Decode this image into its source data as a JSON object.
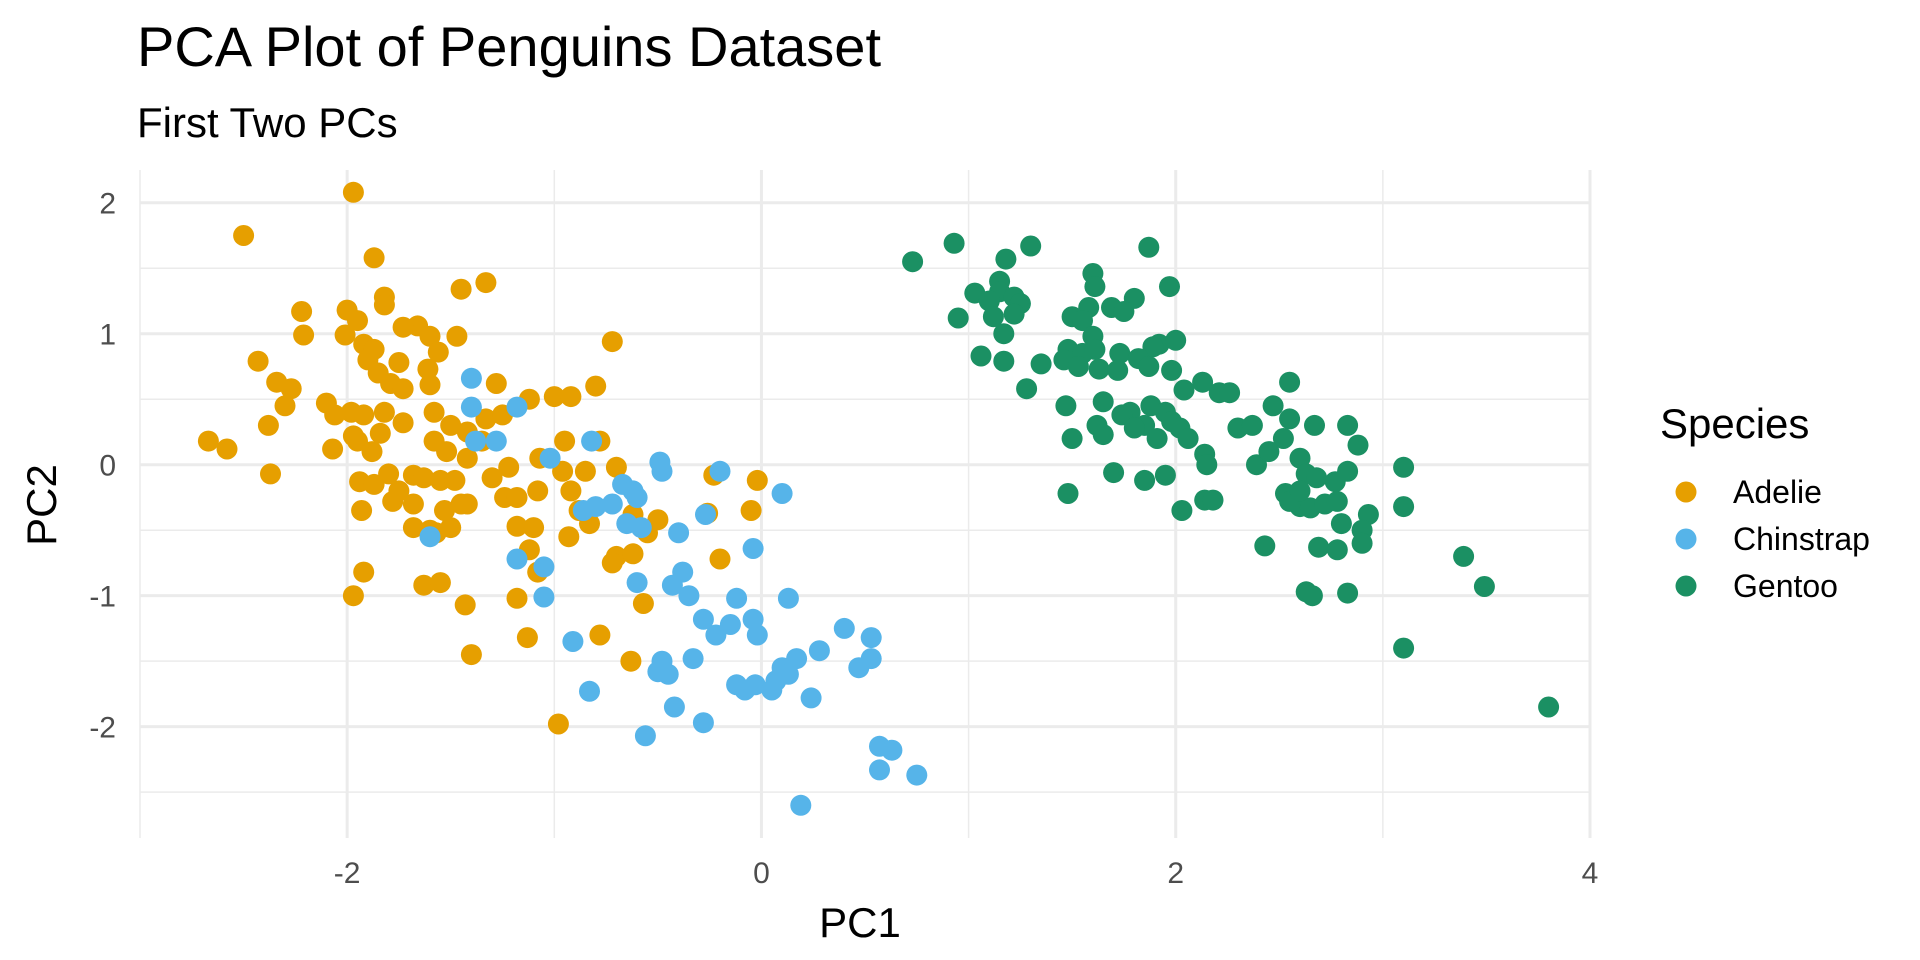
{
  "chart_data": {
    "type": "scatter",
    "title": "PCA Plot of Penguins Dataset",
    "subtitle": "First Two PCs",
    "xlabel": "PC1",
    "ylabel": "PC2",
    "xlim": [
      -3.0,
      4.0
    ],
    "ylim": [
      -2.85,
      2.25
    ],
    "xticks": [
      -2,
      0,
      2,
      4
    ],
    "xtick_labels": [
      "-2",
      "0",
      "2",
      "4"
    ],
    "yticks": [
      -2,
      -1,
      0,
      1,
      2
    ],
    "ytick_labels": [
      "-2",
      "-1",
      "0",
      "1",
      "2"
    ],
    "grid": true,
    "legend": {
      "title": "Species",
      "position": "right"
    },
    "series": [
      {
        "name": "Adelie",
        "color": "#E69F00",
        "points": [
          [
            -1.97,
            2.08
          ],
          [
            -2.5,
            1.75
          ],
          [
            -1.87,
            1.58
          ],
          [
            -1.82,
            1.28
          ],
          [
            -1.82,
            1.22
          ],
          [
            -2.22,
            1.17
          ],
          [
            -2.0,
            1.18
          ],
          [
            -1.45,
            1.34
          ],
          [
            -1.33,
            1.39
          ],
          [
            -1.95,
            1.1
          ],
          [
            -2.21,
            0.99
          ],
          [
            -2.01,
            0.99
          ],
          [
            -1.92,
            0.92
          ],
          [
            -1.87,
            0.88
          ],
          [
            -1.6,
            0.98
          ],
          [
            -1.66,
            1.06
          ],
          [
            -1.73,
            1.05
          ],
          [
            -1.47,
            0.98
          ],
          [
            -0.72,
            0.94
          ],
          [
            -1.9,
            0.8
          ],
          [
            -1.75,
            0.78
          ],
          [
            -1.56,
            0.86
          ],
          [
            -1.61,
            0.73
          ],
          [
            -1.85,
            0.7
          ],
          [
            -2.43,
            0.79
          ],
          [
            -2.34,
            0.63
          ],
          [
            -2.27,
            0.58
          ],
          [
            -1.79,
            0.62
          ],
          [
            -1.6,
            0.61
          ],
          [
            -1.73,
            0.58
          ],
          [
            -1.28,
            0.62
          ],
          [
            -1.12,
            0.5
          ],
          [
            -1.0,
            0.52
          ],
          [
            -0.8,
            0.6
          ],
          [
            -0.92,
            0.52
          ],
          [
            -2.1,
            0.47
          ],
          [
            -1.98,
            0.4
          ],
          [
            -2.06,
            0.38
          ],
          [
            -2.3,
            0.45
          ],
          [
            -1.92,
            0.38
          ],
          [
            -1.82,
            0.4
          ],
          [
            -1.58,
            0.4
          ],
          [
            -1.5,
            0.3
          ],
          [
            -1.42,
            0.25
          ],
          [
            -1.33,
            0.35
          ],
          [
            -1.25,
            0.38
          ],
          [
            -1.73,
            0.32
          ],
          [
            -1.84,
            0.24
          ],
          [
            -1.97,
            0.22
          ],
          [
            -2.67,
            0.18
          ],
          [
            -2.58,
            0.12
          ],
          [
            -2.38,
            0.3
          ],
          [
            -2.07,
            0.12
          ],
          [
            -1.95,
            0.18
          ],
          [
            -1.88,
            0.1
          ],
          [
            -1.58,
            0.18
          ],
          [
            -1.52,
            0.1
          ],
          [
            -1.35,
            0.18
          ],
          [
            -1.42,
            0.05
          ],
          [
            -1.22,
            -0.02
          ],
          [
            -1.07,
            0.05
          ],
          [
            -0.95,
            0.18
          ],
          [
            -0.96,
            -0.05
          ],
          [
            -0.85,
            -0.05
          ],
          [
            -0.7,
            -0.02
          ],
          [
            -0.78,
            0.18
          ],
          [
            -2.37,
            -0.07
          ],
          [
            -1.94,
            -0.13
          ],
          [
            -1.87,
            -0.15
          ],
          [
            -1.8,
            -0.07
          ],
          [
            -1.68,
            -0.08
          ],
          [
            -1.63,
            -0.1
          ],
          [
            -1.55,
            -0.12
          ],
          [
            -1.48,
            -0.12
          ],
          [
            -1.78,
            -0.28
          ],
          [
            -1.68,
            -0.3
          ],
          [
            -1.53,
            -0.35
          ],
          [
            -1.42,
            -0.3
          ],
          [
            -1.24,
            -0.25
          ],
          [
            -1.18,
            -0.25
          ],
          [
            -1.08,
            -0.2
          ],
          [
            -0.92,
            -0.2
          ],
          [
            -0.88,
            -0.35
          ],
          [
            -1.93,
            -0.35
          ],
          [
            -1.68,
            -0.48
          ],
          [
            -1.6,
            -0.5
          ],
          [
            -1.5,
            -0.48
          ],
          [
            -1.18,
            -0.47
          ],
          [
            -0.93,
            -0.55
          ],
          [
            -0.83,
            -0.45
          ],
          [
            -1.12,
            -0.65
          ],
          [
            -0.7,
            -0.7
          ],
          [
            -0.62,
            -0.68
          ],
          [
            -0.72,
            -0.75
          ],
          [
            -0.62,
            -0.38
          ],
          [
            -0.5,
            -0.42
          ],
          [
            -0.55,
            -0.52
          ],
          [
            -0.26,
            -0.37
          ],
          [
            -0.05,
            -0.35
          ],
          [
            -0.23,
            -0.08
          ],
          [
            -0.02,
            -0.12
          ],
          [
            -0.2,
            -0.72
          ],
          [
            -1.92,
            -0.82
          ],
          [
            -1.63,
            -0.92
          ],
          [
            -1.55,
            -0.9
          ],
          [
            -1.97,
            -1.0
          ],
          [
            -1.08,
            -0.82
          ],
          [
            -1.18,
            -1.02
          ],
          [
            -1.43,
            -1.07
          ],
          [
            -0.57,
            -1.06
          ],
          [
            -1.13,
            -1.32
          ],
          [
            -0.78,
            -1.3
          ],
          [
            -1.4,
            -1.45
          ],
          [
            -0.63,
            -1.5
          ],
          [
            -0.98,
            -1.98
          ],
          [
            -1.57,
            -0.52
          ],
          [
            -1.45,
            -0.3
          ],
          [
            -1.1,
            -0.48
          ],
          [
            -1.75,
            -0.2
          ],
          [
            -1.3,
            -0.1
          ]
        ]
      },
      {
        "name": "Chinstrap",
        "color": "#56B4E9",
        "points": [
          [
            -1.4,
            0.66
          ],
          [
            -1.4,
            0.44
          ],
          [
            -1.18,
            0.44
          ],
          [
            -1.38,
            0.18
          ],
          [
            -1.28,
            0.18
          ],
          [
            -0.82,
            0.18
          ],
          [
            -1.02,
            0.05
          ],
          [
            -0.49,
            0.02
          ],
          [
            -0.48,
            -0.05
          ],
          [
            -0.2,
            -0.05
          ],
          [
            -0.67,
            -0.15
          ],
          [
            -0.62,
            -0.2
          ],
          [
            -0.6,
            -0.25
          ],
          [
            -0.72,
            -0.3
          ],
          [
            -0.8,
            -0.32
          ],
          [
            -0.86,
            -0.35
          ],
          [
            -0.65,
            -0.45
          ],
          [
            -0.58,
            -0.48
          ],
          [
            -0.4,
            -0.52
          ],
          [
            -0.27,
            -0.38
          ],
          [
            0.1,
            -0.22
          ],
          [
            -1.6,
            -0.55
          ],
          [
            -1.18,
            -0.72
          ],
          [
            -1.05,
            -0.78
          ],
          [
            -0.6,
            -0.9
          ],
          [
            -0.38,
            -0.82
          ],
          [
            -0.43,
            -0.92
          ],
          [
            -0.35,
            -1.0
          ],
          [
            -0.12,
            -1.02
          ],
          [
            -0.28,
            -1.18
          ],
          [
            -0.15,
            -1.22
          ],
          [
            -0.22,
            -1.3
          ],
          [
            -0.04,
            -1.18
          ],
          [
            -0.02,
            -1.3
          ],
          [
            -0.04,
            -0.64
          ],
          [
            0.13,
            -1.02
          ],
          [
            -1.05,
            -1.01
          ],
          [
            -0.91,
            -1.35
          ],
          [
            -0.83,
            -1.73
          ],
          [
            -0.48,
            -1.5
          ],
          [
            -0.45,
            -1.6
          ],
          [
            -0.33,
            -1.48
          ],
          [
            -0.5,
            -1.58
          ],
          [
            0.1,
            -1.55
          ],
          [
            0.13,
            -1.6
          ],
          [
            0.17,
            -1.48
          ],
          [
            0.28,
            -1.42
          ],
          [
            0.4,
            -1.25
          ],
          [
            0.53,
            -1.32
          ],
          [
            0.53,
            -1.48
          ],
          [
            0.47,
            -1.55
          ],
          [
            -0.12,
            -1.68
          ],
          [
            -0.08,
            -1.72
          ],
          [
            -0.03,
            -1.68
          ],
          [
            0.05,
            -1.72
          ],
          [
            0.07,
            -1.65
          ],
          [
            0.24,
            -1.78
          ],
          [
            -0.42,
            -1.85
          ],
          [
            -0.28,
            -1.97
          ],
          [
            -0.56,
            -2.07
          ],
          [
            0.57,
            -2.15
          ],
          [
            0.63,
            -2.18
          ],
          [
            0.57,
            -2.33
          ],
          [
            0.75,
            -2.37
          ],
          [
            0.19,
            -2.6
          ]
        ]
      },
      {
        "name": "Gentoo",
        "color": "#1B9063",
        "points": [
          [
            0.73,
            1.55
          ],
          [
            0.93,
            1.69
          ],
          [
            1.18,
            1.57
          ],
          [
            1.3,
            1.67
          ],
          [
            1.87,
            1.66
          ],
          [
            1.6,
            1.46
          ],
          [
            1.15,
            1.4
          ],
          [
            1.03,
            1.31
          ],
          [
            1.15,
            1.32
          ],
          [
            1.1,
            1.25
          ],
          [
            1.22,
            1.28
          ],
          [
            1.25,
            1.23
          ],
          [
            1.61,
            1.36
          ],
          [
            1.8,
            1.27
          ],
          [
            1.97,
            1.36
          ],
          [
            1.69,
            1.2
          ],
          [
            1.58,
            1.2
          ],
          [
            1.5,
            1.13
          ],
          [
            1.55,
            1.1
          ],
          [
            1.75,
            1.17
          ],
          [
            0.95,
            1.12
          ],
          [
            1.12,
            1.13
          ],
          [
            1.22,
            1.15
          ],
          [
            1.17,
            1.0
          ],
          [
            1.6,
            0.98
          ],
          [
            1.48,
            0.88
          ],
          [
            1.55,
            0.85
          ],
          [
            1.61,
            0.88
          ],
          [
            1.73,
            0.85
          ],
          [
            1.92,
            0.92
          ],
          [
            2.0,
            0.95
          ],
          [
            1.89,
            0.9
          ],
          [
            1.35,
            0.77
          ],
          [
            1.46,
            0.8
          ],
          [
            1.63,
            0.73
          ],
          [
            1.72,
            0.72
          ],
          [
            1.82,
            0.81
          ],
          [
            1.87,
            0.75
          ],
          [
            1.98,
            0.72
          ],
          [
            1.06,
            0.83
          ],
          [
            1.17,
            0.79
          ],
          [
            1.53,
            0.75
          ],
          [
            1.28,
            0.58
          ],
          [
            1.47,
            0.45
          ],
          [
            1.65,
            0.48
          ],
          [
            1.78,
            0.4
          ],
          [
            1.88,
            0.45
          ],
          [
            1.95,
            0.4
          ],
          [
            2.04,
            0.57
          ],
          [
            2.13,
            0.63
          ],
          [
            1.62,
            0.3
          ],
          [
            1.74,
            0.38
          ],
          [
            1.85,
            0.3
          ],
          [
            1.98,
            0.33
          ],
          [
            2.02,
            0.28
          ],
          [
            2.21,
            0.55
          ],
          [
            2.26,
            0.55
          ],
          [
            2.47,
            0.45
          ],
          [
            2.55,
            0.63
          ],
          [
            1.5,
            0.2
          ],
          [
            1.65,
            0.23
          ],
          [
            1.8,
            0.28
          ],
          [
            1.91,
            0.2
          ],
          [
            2.06,
            0.2
          ],
          [
            2.3,
            0.28
          ],
          [
            2.37,
            0.3
          ],
          [
            2.67,
            0.3
          ],
          [
            2.83,
            0.3
          ],
          [
            2.88,
            0.15
          ],
          [
            2.52,
            0.2
          ],
          [
            2.55,
            0.35
          ],
          [
            1.7,
            -0.06
          ],
          [
            1.85,
            -0.12
          ],
          [
            1.95,
            -0.08
          ],
          [
            2.14,
            0.08
          ],
          [
            2.15,
            0.0
          ],
          [
            2.39,
            0.0
          ],
          [
            2.6,
            0.05
          ],
          [
            2.63,
            -0.07
          ],
          [
            2.68,
            -0.1
          ],
          [
            2.77,
            -0.13
          ],
          [
            2.83,
            -0.05
          ],
          [
            2.53,
            -0.22
          ],
          [
            2.55,
            -0.28
          ],
          [
            2.6,
            -0.32
          ],
          [
            2.65,
            -0.33
          ],
          [
            2.72,
            -0.3
          ],
          [
            2.78,
            -0.28
          ],
          [
            2.93,
            -0.38
          ],
          [
            2.9,
            -0.5
          ],
          [
            2.9,
            -0.6
          ],
          [
            3.1,
            -0.02
          ],
          [
            3.1,
            -0.32
          ],
          [
            1.48,
            -0.22
          ],
          [
            2.03,
            -0.35
          ],
          [
            2.14,
            -0.27
          ],
          [
            2.18,
            -0.27
          ],
          [
            2.43,
            -0.62
          ],
          [
            2.69,
            -0.63
          ],
          [
            2.78,
            -0.65
          ],
          [
            2.63,
            -0.97
          ],
          [
            2.66,
            -1.0
          ],
          [
            2.83,
            -0.98
          ],
          [
            3.39,
            -0.7
          ],
          [
            3.49,
            -0.93
          ],
          [
            3.1,
            -1.4
          ],
          [
            3.8,
            -1.85
          ],
          [
            2.6,
            -0.2
          ],
          [
            2.8,
            -0.45
          ],
          [
            2.45,
            0.1
          ]
        ]
      }
    ]
  }
}
